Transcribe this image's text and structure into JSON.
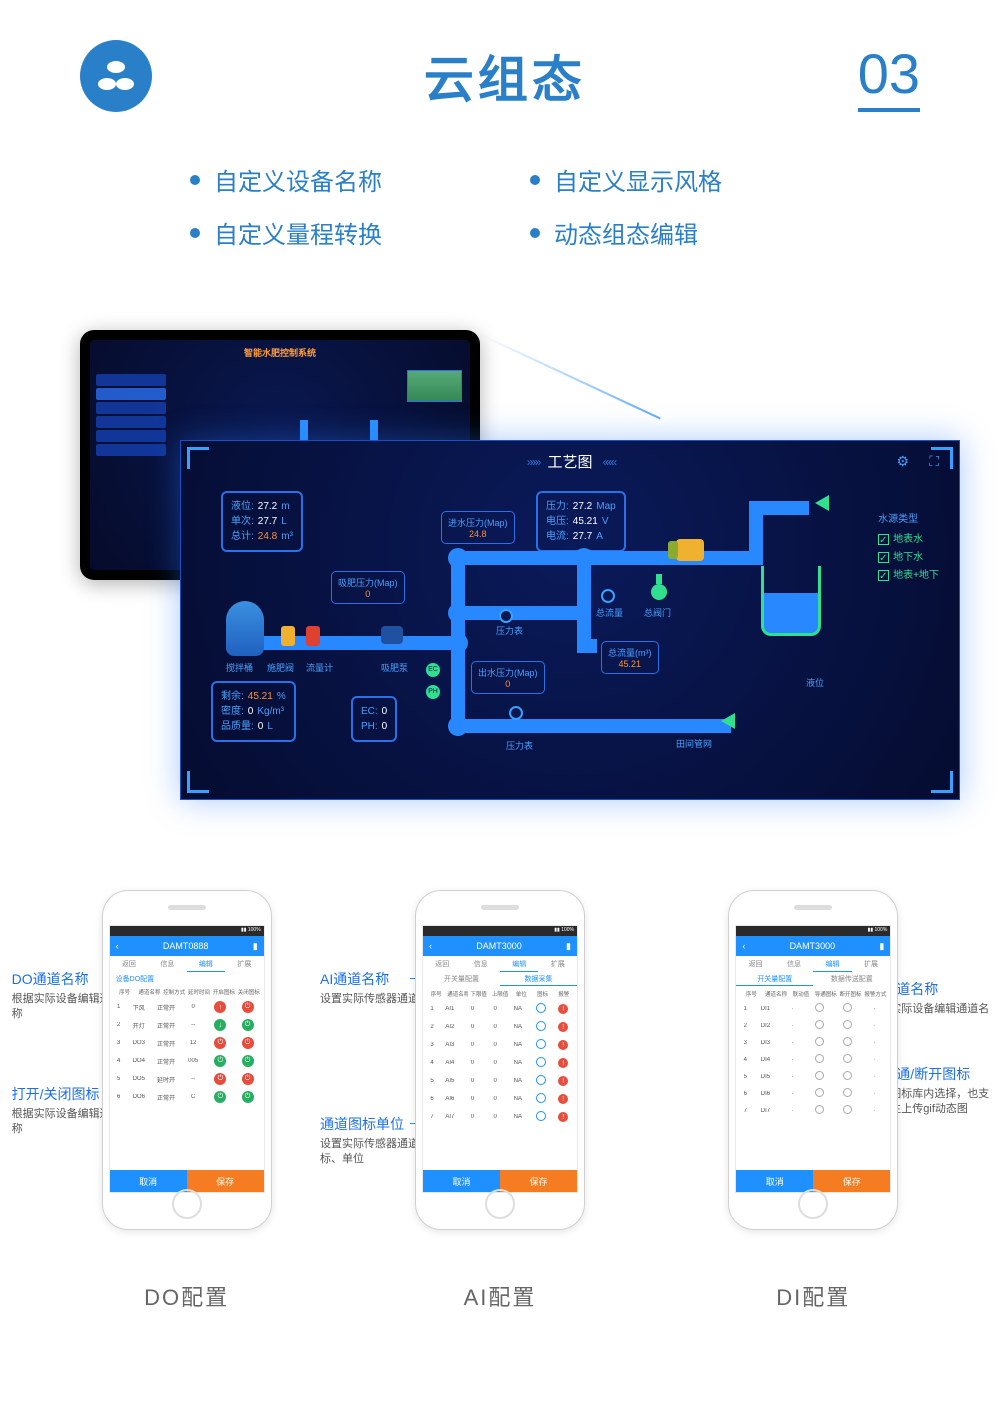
{
  "header": {
    "title": "云组态",
    "number": "03"
  },
  "features": [
    "自定义设备名称",
    "自定义显示风格",
    "自定义量程转换",
    "动态组态编辑"
  ],
  "tablet": {
    "title": "智能水肥控制系统"
  },
  "zoom": {
    "title": "工艺图",
    "cards": {
      "liquid": [
        {
          "k": "液位:",
          "v": "27.2",
          "u": "m"
        },
        {
          "k": "单次:",
          "v": "27.7",
          "u": "L"
        },
        {
          "k": "总计:",
          "v": "24.8",
          "u": "m³",
          "orange": true
        }
      ],
      "pressure": [
        {
          "k": "压力:",
          "v": "27.2",
          "u": "Map"
        },
        {
          "k": "电压:",
          "v": "45.21",
          "u": "V"
        },
        {
          "k": "电流:",
          "v": "27.7",
          "u": "A"
        }
      ],
      "residual": [
        {
          "k": "剩余:",
          "v": "45.21",
          "u": "%",
          "orange": true
        },
        {
          "k": "密度:",
          "v": "0",
          "u": "Kg/m³"
        },
        {
          "k": "品质量:",
          "v": "0",
          "u": "L"
        }
      ],
      "ecph": [
        {
          "k": "EC:",
          "v": "0"
        },
        {
          "k": "PH:",
          "v": "0"
        }
      ]
    },
    "minicards": {
      "inlet": {
        "t": "进水压力(Map)",
        "v": "24.8"
      },
      "fert": {
        "t": "吸肥压力(Map)",
        "v": "0"
      },
      "outlet": {
        "t": "出水压力(Map)",
        "v": "0"
      },
      "flow": {
        "t": "总流量(m³)",
        "v": "45.21"
      }
    },
    "labels": {
      "mixtank": "搅拌桶",
      "fertvalve": "施肥阀",
      "flowmeter": "流量计",
      "fertpump": "吸肥泵",
      "press": "压力表",
      "totalflow": "总流量",
      "mainvalve": "总阀门",
      "level": "液位",
      "field": "田间管网"
    },
    "source": {
      "hdr": "水源类型",
      "items": [
        "地表水",
        "地下水",
        "地表+地下"
      ]
    },
    "ecph_labels": [
      "EC",
      "PH"
    ]
  },
  "phones": {
    "do": {
      "label": "DO配置",
      "device": "DAMT0888",
      "tabs": [
        "返回",
        "信息",
        "编辑",
        "扩展"
      ],
      "subtab": "设备DO配置",
      "cols": [
        "序号",
        "通道名称",
        "控制方式",
        "延时时间",
        "开启图标",
        "关闭图标"
      ],
      "rows": [
        [
          "1",
          "下风",
          "正常开",
          "0"
        ],
        [
          "2",
          "开灯",
          "正常开",
          "--"
        ],
        [
          "3",
          "DO3",
          "正常开",
          "12"
        ],
        [
          "4",
          "DO4",
          "正常开",
          "005"
        ],
        [
          "5",
          "DO5",
          "延时开",
          "--"
        ],
        [
          "6",
          "DO6",
          "正常开",
          "C"
        ]
      ],
      "footer": [
        "取消",
        "保存"
      ],
      "callouts": [
        {
          "t": "DO通道名称",
          "d": "根据实际设备编辑通道名称"
        },
        {
          "t": "打开/关闭图标",
          "d": "根据实际设备编辑通道名称"
        }
      ]
    },
    "ai": {
      "label": "AI配置",
      "device": "DAMT3000",
      "tabs": [
        "返回",
        "信息",
        "编辑",
        "扩展"
      ],
      "subtabs": [
        "开关量配置",
        "数据采集"
      ],
      "cols": [
        "序号",
        "通道名称",
        "下限值",
        "上限值",
        "单位",
        "图标",
        "报警"
      ],
      "rows": [
        [
          "1",
          "AI1",
          "0",
          "0",
          "NA"
        ],
        [
          "2",
          "AI2",
          "0",
          "0",
          "NA"
        ],
        [
          "3",
          "AI3",
          "0",
          "0",
          "NA"
        ],
        [
          "4",
          "AI4",
          "0",
          "0",
          "NA"
        ],
        [
          "5",
          "AI5",
          "0",
          "0",
          "NA"
        ],
        [
          "6",
          "AI6",
          "0",
          "0",
          "NA"
        ],
        [
          "7",
          "AI7",
          "0",
          "0",
          "NA"
        ]
      ],
      "footer": [
        "取消",
        "保存"
      ],
      "callouts": [
        {
          "t": "AI通道名称",
          "d": "设置实际传感器通道名称"
        },
        {
          "t": "通道图标单位",
          "d": "设置实际传感器通道图标、单位"
        }
      ]
    },
    "di": {
      "label": "DI配置",
      "device": "DAMT3000",
      "tabs": [
        "返回",
        "信息",
        "编辑",
        "扩展"
      ],
      "subtabs": [
        "开关量配置",
        "数据传送配置"
      ],
      "cols": [
        "序号",
        "通道名称",
        "联动值",
        "导通图标",
        "断开图标",
        "报警方式"
      ],
      "rows": [
        [
          "1",
          "DI1",
          "",
          "",
          "",
          ""
        ],
        [
          "2",
          "DI2",
          "",
          "",
          "",
          ""
        ],
        [
          "3",
          "DI3",
          "",
          "",
          "",
          ""
        ],
        [
          "4",
          "DI4",
          "",
          "",
          "",
          ""
        ],
        [
          "5",
          "DI5",
          "",
          "",
          "",
          ""
        ],
        [
          "6",
          "DI6",
          "",
          "",
          "",
          ""
        ],
        [
          "7",
          "DI7",
          "",
          "",
          "",
          ""
        ]
      ],
      "footer": [
        "取消",
        "保存"
      ],
      "callouts": [
        {
          "t": "DI通道名称",
          "d": "根据实际设备编辑通道名称"
        },
        {
          "t": "DI导通/断开图标",
          "d": "可从图标库内选择，也支持自主上传gif动态图"
        }
      ]
    }
  }
}
